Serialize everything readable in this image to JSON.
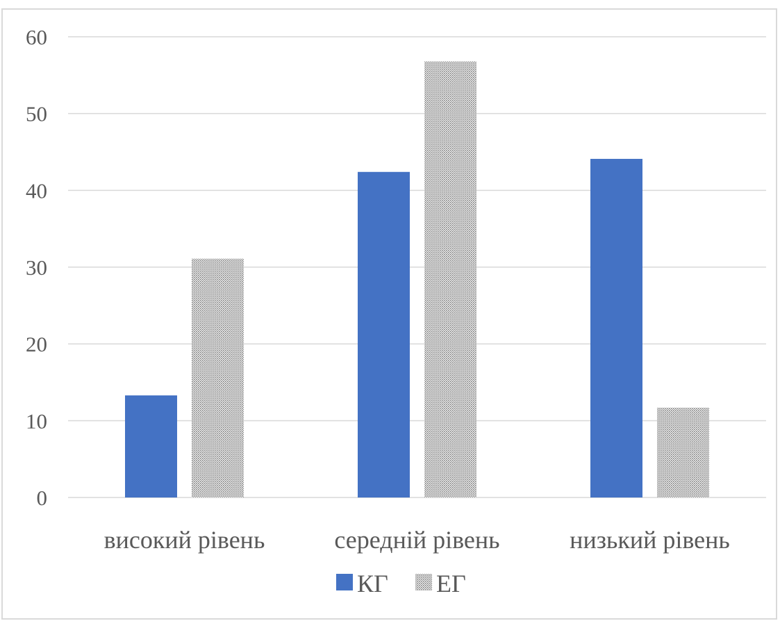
{
  "chart_data": {
    "type": "bar",
    "categories": [
      "високий рівень",
      "середній рівень",
      "низький рівень"
    ],
    "series": [
      {
        "name": "КГ",
        "values": [
          13.3,
          42.4,
          44.1
        ],
        "color": "#4472c4",
        "fill": "solid"
      },
      {
        "name": "ЕГ",
        "values": [
          31.1,
          56.8,
          11.7
        ],
        "color": "#7f7f7f",
        "fill": "dotted-pattern"
      }
    ],
    "ylim": [
      0,
      60
    ],
    "yticks": [
      0,
      10,
      20,
      30,
      40,
      50,
      60
    ],
    "title": "",
    "xlabel": "",
    "ylabel": "",
    "grid": "horizontal",
    "legend_position": "bottom-center",
    "gridline_color": "#d9d9d9"
  }
}
